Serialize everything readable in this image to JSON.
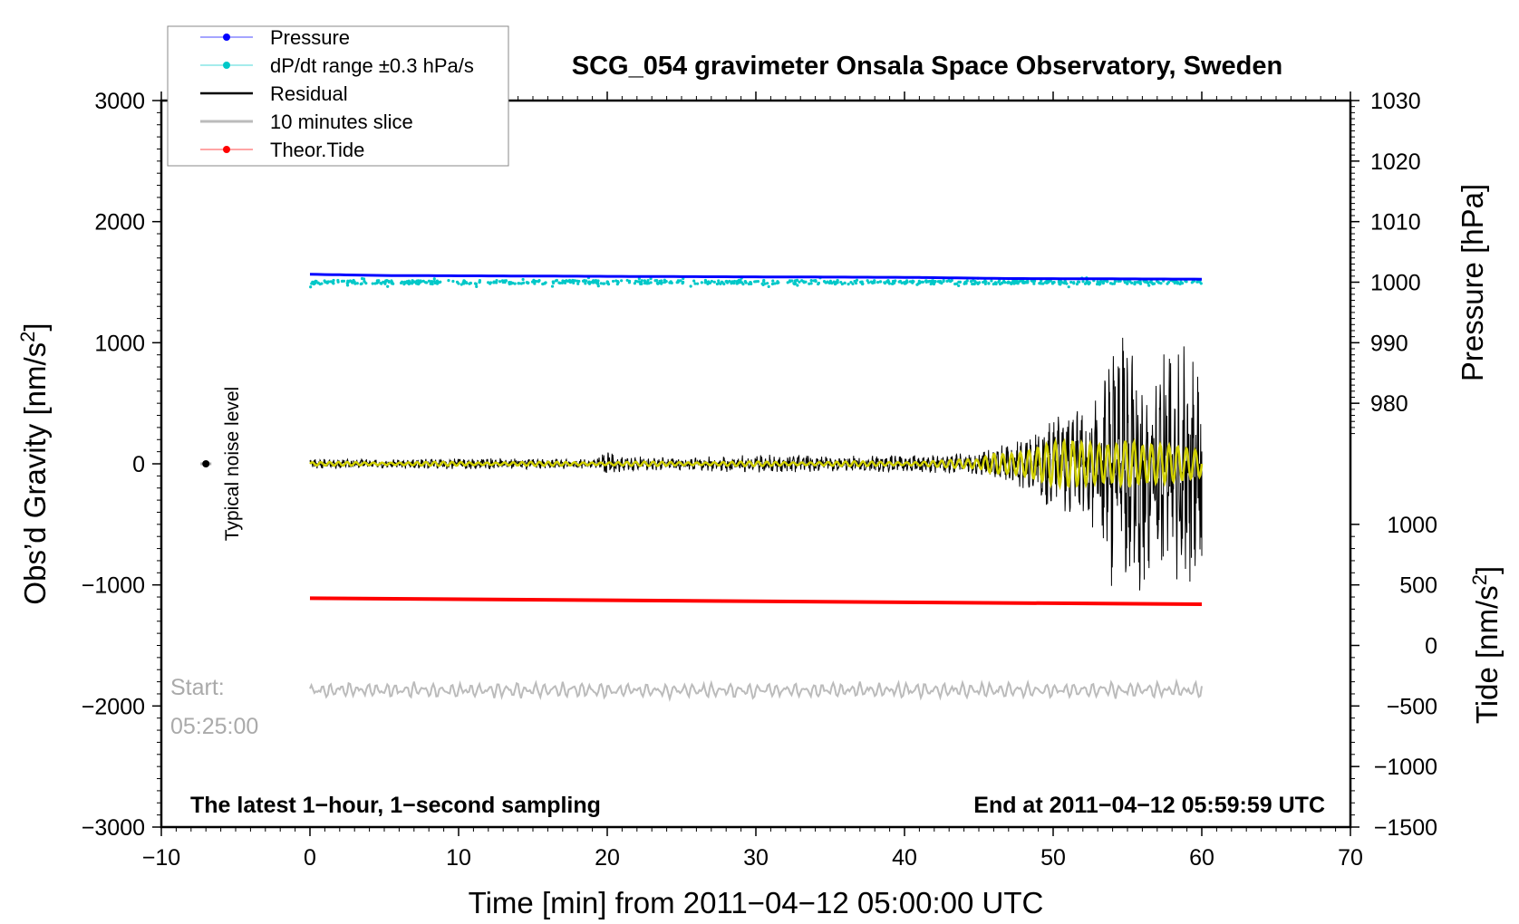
{
  "chart_data": {
    "type": "line",
    "title": "SCG_054 gravimeter Onsala Space Observatory, Sweden",
    "xlabel": "Time [min] from 2011−04−12 05:00:00 UTC",
    "ylabel": {
      "text": "Obs’d Gravity [nm/s",
      "sup": "2",
      "end": "]"
    },
    "y2label": "Pressure [hPa]",
    "y3label": {
      "text": "Tide [nm/s",
      "sup": "2",
      "end": "]"
    },
    "xlim": [
      -10,
      70
    ],
    "ylim": [
      -3000,
      3000
    ],
    "x_ticks": [
      "−10",
      "0",
      "10",
      "20",
      "30",
      "40",
      "50",
      "60",
      "70"
    ],
    "x_tick_values": [
      -10,
      0,
      10,
      20,
      30,
      40,
      50,
      60,
      70
    ],
    "y_ticks": [
      "3000",
      "2000",
      "1000",
      "0",
      "−1000",
      "−2000",
      "−3000"
    ],
    "y_tick_values": [
      3000,
      2000,
      1000,
      0,
      -1000,
      -2000,
      -3000
    ],
    "pressure_ticks": [
      "1030",
      "1020",
      "1010",
      "1000",
      "990",
      "980"
    ],
    "pressure_tick_values": [
      1030,
      1020,
      1010,
      1000,
      990,
      980
    ],
    "pressure_axis_map": {
      "pressure_at_gravity_3000": 1030,
      "gravity_per_hPa": 50
    },
    "tide_ticks": [
      "1000",
      "500",
      "0",
      "−500",
      "−1000",
      "−1500"
    ],
    "tide_tick_values": [
      1000,
      500,
      0,
      -500,
      -1000,
      -1500
    ],
    "tide_axis_map": {
      "gravity_offset": -1500
    },
    "legend": {
      "placement": "top-left",
      "entries": [
        {
          "label": "Pressure",
          "color": "#0000ff",
          "marker": true
        },
        {
          "label": "dP/dt range ±0.3 hPa/s",
          "color": "#00c8c8",
          "marker": true
        },
        {
          "label": "Residual",
          "color": "#000000",
          "marker": false
        },
        {
          "label": "10 minutes slice",
          "color": "#bbbbbb",
          "marker": false
        },
        {
          "label": "Theor.Tide",
          "color": "#ff0000",
          "marker": true
        }
      ]
    },
    "series": [
      {
        "name": "Pressure",
        "unit": "hPa",
        "x": [
          0,
          5,
          27,
          40,
          47,
          60
        ],
        "values": [
          1001.3,
          1001.1,
          1000.9,
          1000.8,
          1000.6,
          1000.5
        ]
      },
      {
        "name": "dP/dt range",
        "unit": "hPa",
        "center": 1000.0,
        "spread": 0.4
      },
      {
        "name": "Residual",
        "unit": "nm/s2",
        "envelope_minutes": [
          0,
          5,
          10,
          15,
          19,
          20,
          21,
          25,
          30,
          35,
          40,
          45,
          46,
          48,
          50,
          52,
          53,
          54,
          55,
          56,
          58,
          60
        ],
        "envelope": [
          30,
          30,
          35,
          35,
          30,
          80,
          50,
          40,
          60,
          50,
          55,
          70,
          120,
          180,
          300,
          350,
          500,
          900,
          1000,
          800,
          800,
          750
        ]
      },
      {
        "name": "Filtered residual",
        "color": "#d0d000",
        "unit": "nm/s2",
        "envelope_minutes": [
          0,
          40,
          45,
          46,
          48,
          50,
          52,
          53,
          54,
          55,
          56,
          58,
          60
        ],
        "envelope": [
          15,
          20,
          40,
          120,
          150,
          180,
          200,
          230,
          260,
          300,
          180,
          150,
          150
        ]
      },
      {
        "name": "10 minutes slice",
        "offset_gravity": -1870,
        "amplitude": 70
      },
      {
        "name": "Theor.Tide",
        "unit": "nm/s2",
        "x": [
          0,
          60
        ],
        "values": [
          390,
          340
        ]
      }
    ],
    "noise_level": {
      "x": -7,
      "y": 0,
      "label": "Typical noise level"
    },
    "annotations": {
      "start_label": "Start:",
      "start_time": "05:25:00",
      "sampling": "The latest 1−hour, 1−second sampling",
      "end": "End at 2011−04−12 05:59:59 UTC"
    }
  }
}
